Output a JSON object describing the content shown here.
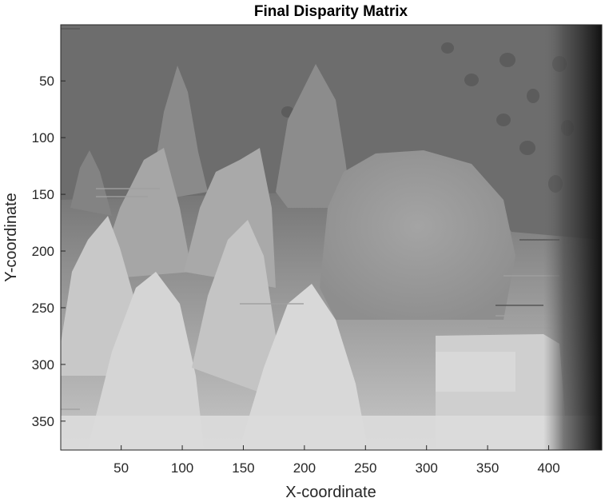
{
  "chart_data": {
    "type": "heatmap",
    "title": "Final Disparity Matrix",
    "xlabel": "X-coordinate",
    "ylabel": "Y-coordinate",
    "xlim": [
      0.5,
      443.5
    ],
    "ylim": [
      0.5,
      375.5
    ],
    "y_direction": "reversed",
    "colormap": "gray",
    "grid": false,
    "xticks": [
      50,
      100,
      150,
      200,
      250,
      300,
      350,
      400
    ],
    "yticks": [
      50,
      100,
      150,
      200,
      250,
      300,
      350
    ],
    "tones": {
      "background": "#6c6c6c",
      "upper_peaks": "#8a8a8a",
      "mid_cones": "#b0b0b0",
      "front_cones": "#d6d6d6",
      "dome": "#9c9c9c",
      "floor": "#e0e0e0",
      "right_edge": "#1a1a1a"
    }
  }
}
